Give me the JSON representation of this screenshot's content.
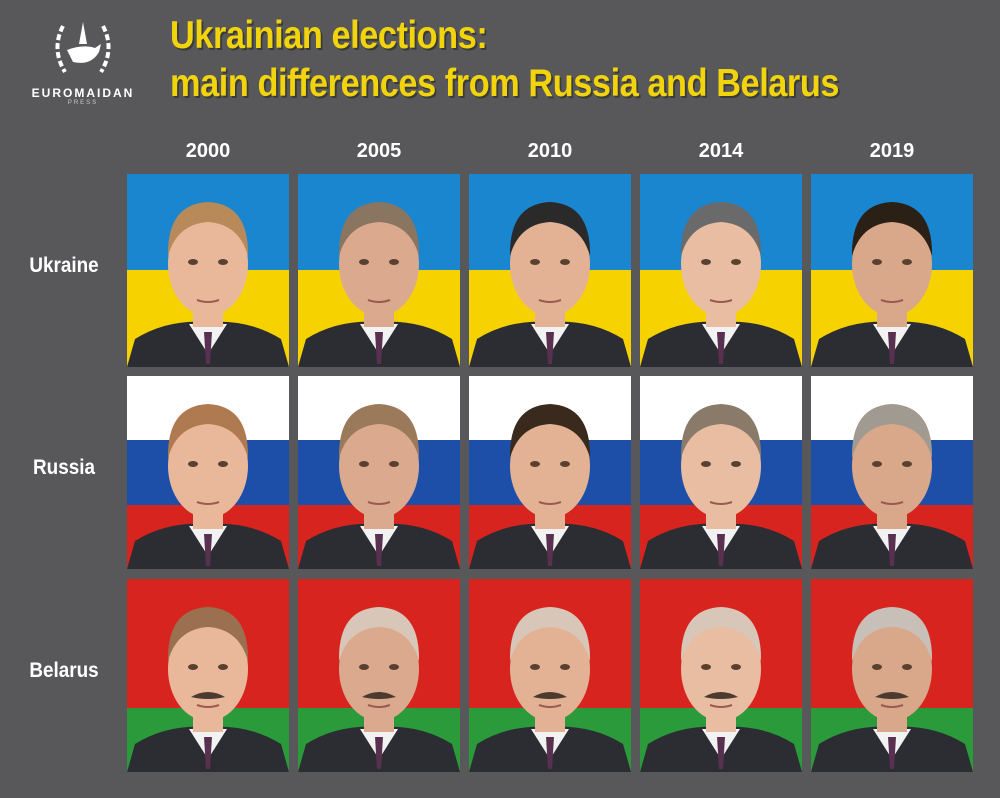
{
  "logo": {
    "brand": "EUROMAIDAN",
    "sub": "PRESS"
  },
  "title": {
    "line1": "Ukrainian elections:",
    "line2": "main differences from Russia and Belarus"
  },
  "years": [
    "2000",
    "2005",
    "2010",
    "2014",
    "2019"
  ],
  "countries": [
    {
      "name": "Ukraine",
      "flag": [
        "#1a86d0",
        "#f6d300"
      ]
    },
    {
      "name": "Russia",
      "flag": [
        "#ffffff",
        "#1d4fa8",
        "#d8241f"
      ]
    },
    {
      "name": "Belarus",
      "flag": [
        "#d8241f",
        "#d8241f",
        "#2a9a3a"
      ]
    }
  ],
  "colors": {
    "background": "#58585a",
    "title": "#f2d40c"
  }
}
